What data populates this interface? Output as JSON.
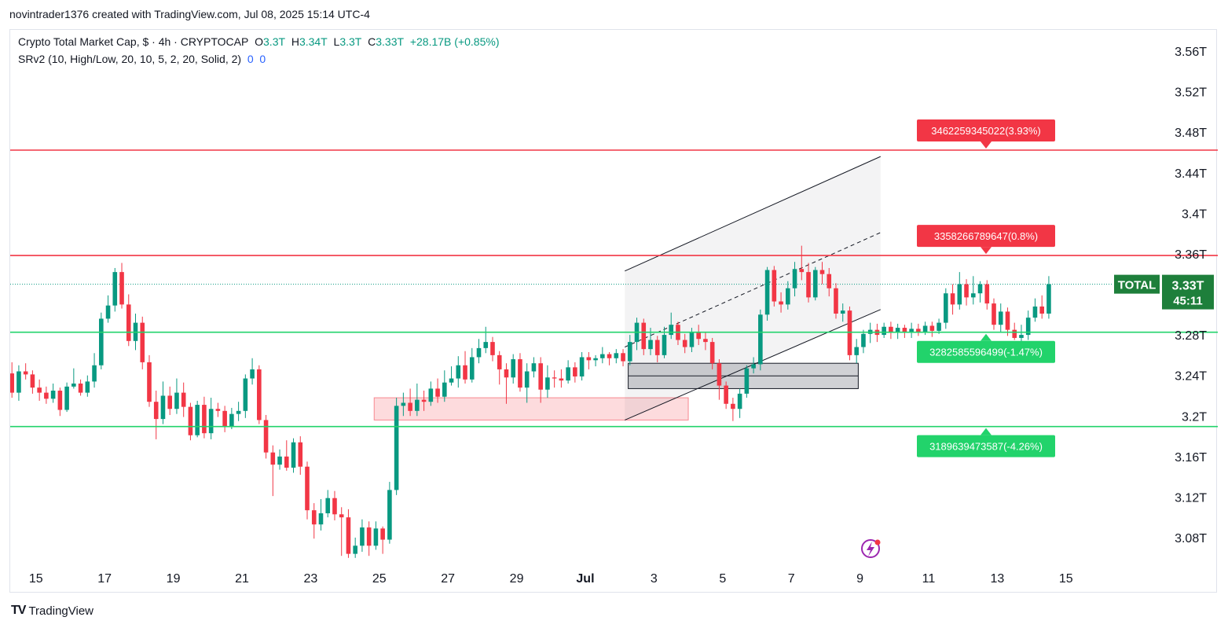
{
  "header": {
    "attribution": "novintrader1376 created with TradingView.com, Jul 08, 2025 15:14 UTC-4"
  },
  "legend": {
    "symbol": "Crypto Total Market Cap, $ · 4h · CRYPTOCAP",
    "open_label": "O",
    "open_value": "3.3T",
    "high_label": "H",
    "high_value": "3.34T",
    "low_label": "L",
    "low_value": "3.3T",
    "close_label": "C",
    "close_value": "3.33T",
    "change": "+28.17B (+0.85%)",
    "indicator": "SRv2 (10, High/Low, 20, 10, 5, 2, 20, Solid, 2)",
    "indicator_val1": "0",
    "indicator_val2": "0"
  },
  "price_badge": {
    "symbol": "TOTAL",
    "price": "3.33T",
    "countdown": "45:11"
  },
  "footer": {
    "brand": "TradingView"
  },
  "colors": {
    "up": "#089981",
    "down": "#f23645",
    "resistance": "#f23645",
    "support": "#22d36b",
    "badge": "#1e7f3b",
    "channel": "#131722"
  },
  "chart_data": {
    "type": "candlestick",
    "y_axis_labels": [
      "3.56T",
      "3.52T",
      "3.48T",
      "3.44T",
      "3.4T",
      "3.36T",
      "3.32T",
      "3.28T",
      "3.24T",
      "3.2T",
      "3.16T",
      "3.12T",
      "3.08T"
    ],
    "y_axis_values": [
      3.56,
      3.52,
      3.48,
      3.44,
      3.4,
      3.36,
      3.32,
      3.28,
      3.24,
      3.2,
      3.16,
      3.12,
      3.08
    ],
    "x_axis_labels": [
      "15",
      "17",
      "19",
      "21",
      "23",
      "25",
      "27",
      "29",
      "Jul",
      "3",
      "5",
      "7",
      "9",
      "11",
      "13",
      "15"
    ],
    "x_axis_days": [
      15,
      17,
      19,
      21,
      23,
      25,
      27,
      29,
      31,
      33,
      35,
      37,
      39,
      41,
      43,
      45
    ],
    "x_unit": "day index (Jun 1 = 1; Jul 1 = 31)",
    "ylim": [
      3.058,
      3.574
    ],
    "xlim": [
      14.25,
      46.6
    ],
    "grid": false,
    "levels": [
      {
        "label": "3462259345022(3.93%)",
        "value": 3.4623,
        "kind": "resistance"
      },
      {
        "label": "3358266789647(0.8%)",
        "value": 3.3583,
        "kind": "resistance"
      },
      {
        "label": "3282585596499(-1.47%)",
        "value": 3.2826,
        "kind": "support"
      },
      {
        "label": "3189639473587(-4.26%)",
        "value": 3.1896,
        "kind": "support"
      }
    ],
    "last_price": 3.33,
    "zones": [
      {
        "kind": "demand",
        "x0": 24.85,
        "x1": 34.0,
        "y0": 3.196,
        "y1": 3.218
      },
      {
        "kind": "gray",
        "x0": 32.25,
        "x1": 38.95,
        "y0": 3.227,
        "y1": 3.252
      }
    ],
    "channel": {
      "lower": [
        [
          32.15,
          3.196
        ],
        [
          39.6,
          3.305
        ]
      ],
      "upper": [
        [
          32.15,
          3.343
        ],
        [
          39.6,
          3.456
        ]
      ],
      "mid": [
        [
          32.15,
          3.268
        ],
        [
          39.6,
          3.381
        ]
      ],
      "fill_until": 39.6
    },
    "candles": [
      [
        14.3,
        3.242,
        3.223,
        3.253,
        3.218
      ],
      [
        14.5,
        3.223,
        3.244,
        3.25,
        3.215
      ],
      [
        14.7,
        3.244,
        3.241,
        3.252,
        3.236
      ],
      [
        14.9,
        3.241,
        3.228,
        3.245,
        3.222
      ],
      [
        15.1,
        3.228,
        3.223,
        3.236,
        3.215
      ],
      [
        15.3,
        3.223,
        3.217,
        3.229,
        3.212
      ],
      [
        15.5,
        3.217,
        3.225,
        3.232,
        3.213
      ],
      [
        15.7,
        3.225,
        3.206,
        3.228,
        3.2
      ],
      [
        15.9,
        3.206,
        3.229,
        3.233,
        3.204
      ],
      [
        16.1,
        3.229,
        3.232,
        3.247,
        3.227
      ],
      [
        16.3,
        3.232,
        3.223,
        3.236,
        3.22
      ],
      [
        16.5,
        3.223,
        3.234,
        3.24,
        3.219
      ],
      [
        16.7,
        3.234,
        3.25,
        3.262,
        3.228
      ],
      [
        16.9,
        3.25,
        3.296,
        3.302,
        3.246
      ],
      [
        17.1,
        3.296,
        3.309,
        3.319,
        3.292
      ],
      [
        17.3,
        3.309,
        3.342,
        3.346,
        3.303
      ],
      [
        17.5,
        3.342,
        3.31,
        3.351,
        3.306
      ],
      [
        17.7,
        3.31,
        3.274,
        3.32,
        3.269
      ],
      [
        17.9,
        3.274,
        3.292,
        3.301,
        3.265
      ],
      [
        18.1,
        3.292,
        3.253,
        3.298,
        3.246
      ],
      [
        18.3,
        3.253,
        3.214,
        3.26,
        3.209
      ],
      [
        18.5,
        3.214,
        3.197,
        3.225,
        3.177
      ],
      [
        18.7,
        3.197,
        3.22,
        3.234,
        3.192
      ],
      [
        18.9,
        3.22,
        3.207,
        3.229,
        3.201
      ],
      [
        19.1,
        3.207,
        3.223,
        3.237,
        3.202
      ],
      [
        19.3,
        3.223,
        3.209,
        3.233,
        3.199
      ],
      [
        19.5,
        3.209,
        3.181,
        3.213,
        3.176
      ],
      [
        19.7,
        3.181,
        3.211,
        3.215,
        3.179
      ],
      [
        19.9,
        3.211,
        3.183,
        3.219,
        3.178
      ],
      [
        20.1,
        3.183,
        3.207,
        3.218,
        3.177
      ],
      [
        20.3,
        3.207,
        3.205,
        3.213,
        3.199
      ],
      [
        20.5,
        3.205,
        3.19,
        3.21,
        3.184
      ],
      [
        20.7,
        3.19,
        3.202,
        3.208,
        3.187
      ],
      [
        20.9,
        3.202,
        3.205,
        3.214,
        3.195
      ],
      [
        21.1,
        3.205,
        3.237,
        3.241,
        3.198
      ],
      [
        21.3,
        3.237,
        3.246,
        3.257,
        3.231
      ],
      [
        21.5,
        3.246,
        3.196,
        3.25,
        3.192
      ],
      [
        21.7,
        3.196,
        3.164,
        3.201,
        3.158
      ],
      [
        21.9,
        3.164,
        3.152,
        3.171,
        3.121
      ],
      [
        22.1,
        3.152,
        3.16,
        3.167,
        3.147
      ],
      [
        22.3,
        3.16,
        3.149,
        3.176,
        3.146
      ],
      [
        22.5,
        3.149,
        3.174,
        3.178,
        3.144
      ],
      [
        22.7,
        3.174,
        3.15,
        3.18,
        3.142
      ],
      [
        22.9,
        3.15,
        3.107,
        3.155,
        3.098
      ],
      [
        23.1,
        3.107,
        3.093,
        3.114,
        3.079
      ],
      [
        23.3,
        3.093,
        3.104,
        3.118,
        3.087
      ],
      [
        23.5,
        3.104,
        3.119,
        3.127,
        3.1
      ],
      [
        23.7,
        3.119,
        3.103,
        3.126,
        3.097
      ],
      [
        23.9,
        3.103,
        3.1,
        3.11,
        3.062
      ],
      [
        24.1,
        3.1,
        3.064,
        3.108,
        3.06
      ],
      [
        24.3,
        3.064,
        3.072,
        3.08,
        3.06
      ],
      [
        24.5,
        3.072,
        3.09,
        3.098,
        3.066
      ],
      [
        24.7,
        3.09,
        3.072,
        3.096,
        3.062
      ],
      [
        24.9,
        3.072,
        3.089,
        3.096,
        3.068
      ],
      [
        25.1,
        3.089,
        3.078,
        3.091,
        3.064
      ],
      [
        25.3,
        3.078,
        3.127,
        3.135,
        3.074
      ],
      [
        25.5,
        3.127,
        3.21,
        3.218,
        3.122
      ],
      [
        25.7,
        3.21,
        3.213,
        3.223,
        3.2
      ],
      [
        25.9,
        3.213,
        3.205,
        3.227,
        3.2
      ],
      [
        26.1,
        3.205,
        3.216,
        3.232,
        3.2
      ],
      [
        26.3,
        3.216,
        3.214,
        3.225,
        3.205
      ],
      [
        26.5,
        3.214,
        3.227,
        3.234,
        3.21
      ],
      [
        26.7,
        3.227,
        3.219,
        3.237,
        3.213
      ],
      [
        26.9,
        3.219,
        3.233,
        3.245,
        3.214
      ],
      [
        27.1,
        3.233,
        3.237,
        3.249,
        3.23
      ],
      [
        27.3,
        3.237,
        3.25,
        3.259,
        3.228
      ],
      [
        27.5,
        3.25,
        3.236,
        3.264,
        3.232
      ],
      [
        27.7,
        3.236,
        3.258,
        3.267,
        3.233
      ],
      [
        27.9,
        3.258,
        3.267,
        3.276,
        3.252
      ],
      [
        28.1,
        3.267,
        3.273,
        3.288,
        3.262
      ],
      [
        28.3,
        3.273,
        3.26,
        3.278,
        3.254
      ],
      [
        28.5,
        3.26,
        3.246,
        3.264,
        3.231
      ],
      [
        28.7,
        3.246,
        3.238,
        3.252,
        3.212
      ],
      [
        28.9,
        3.238,
        3.256,
        3.261,
        3.232
      ],
      [
        29.1,
        3.256,
        3.228,
        3.262,
        3.224
      ],
      [
        29.3,
        3.228,
        3.244,
        3.252,
        3.213
      ],
      [
        29.5,
        3.244,
        3.252,
        3.258,
        3.238
      ],
      [
        29.7,
        3.252,
        3.226,
        3.258,
        3.213
      ],
      [
        29.9,
        3.226,
        3.238,
        3.25,
        3.218
      ],
      [
        30.1,
        3.238,
        3.237,
        3.245,
        3.228
      ],
      [
        30.3,
        3.237,
        3.235,
        3.246,
        3.228
      ],
      [
        30.5,
        3.235,
        3.248,
        3.255,
        3.232
      ],
      [
        30.7,
        3.248,
        3.239,
        3.253,
        3.233
      ],
      [
        30.9,
        3.239,
        3.258,
        3.263,
        3.235
      ],
      [
        31.1,
        3.258,
        3.255,
        3.263,
        3.246
      ],
      [
        31.3,
        3.255,
        3.257,
        3.26,
        3.249
      ],
      [
        31.5,
        3.257,
        3.261,
        3.268,
        3.252
      ],
      [
        31.7,
        3.261,
        3.257,
        3.263,
        3.25
      ],
      [
        31.9,
        3.257,
        3.262,
        3.266,
        3.252
      ],
      [
        32.1,
        3.262,
        3.254,
        3.266,
        3.249
      ],
      [
        32.3,
        3.254,
        3.273,
        3.28,
        3.25
      ],
      [
        32.5,
        3.273,
        3.292,
        3.297,
        3.265
      ],
      [
        32.7,
        3.292,
        3.266,
        3.296,
        3.26
      ],
      [
        32.9,
        3.266,
        3.275,
        3.287,
        3.26
      ],
      [
        33.1,
        3.275,
        3.26,
        3.279,
        3.253
      ],
      [
        33.3,
        3.26,
        3.28,
        3.288,
        3.257
      ],
      [
        33.5,
        3.28,
        3.29,
        3.302,
        3.276
      ],
      [
        33.7,
        3.29,
        3.275,
        3.293,
        3.27
      ],
      [
        33.9,
        3.275,
        3.268,
        3.281,
        3.262
      ],
      [
        34.1,
        3.268,
        3.282,
        3.287,
        3.263
      ],
      [
        34.3,
        3.282,
        3.276,
        3.29,
        3.27
      ],
      [
        34.5,
        3.276,
        3.273,
        3.282,
        3.265
      ],
      [
        34.7,
        3.273,
        3.252,
        3.277,
        3.246
      ],
      [
        34.9,
        3.252,
        3.23,
        3.256,
        3.216
      ],
      [
        35.1,
        3.23,
        3.212,
        3.234,
        3.207
      ],
      [
        35.3,
        3.212,
        3.207,
        3.218,
        3.195
      ],
      [
        35.5,
        3.207,
        3.222,
        3.227,
        3.198
      ],
      [
        35.7,
        3.222,
        3.247,
        3.25,
        3.218
      ],
      [
        35.9,
        3.247,
        3.251,
        3.258,
        3.242
      ],
      [
        36.1,
        3.251,
        3.3,
        3.305,
        3.245
      ],
      [
        36.3,
        3.3,
        3.344,
        3.347,
        3.294
      ],
      [
        36.5,
        3.344,
        3.313,
        3.348,
        3.308
      ],
      [
        36.7,
        3.313,
        3.31,
        3.322,
        3.302
      ],
      [
        36.9,
        3.31,
        3.326,
        3.333,
        3.305
      ],
      [
        37.1,
        3.326,
        3.345,
        3.352,
        3.318
      ],
      [
        37.3,
        3.345,
        3.342,
        3.368,
        3.334
      ],
      [
        37.5,
        3.342,
        3.317,
        3.351,
        3.312
      ],
      [
        37.7,
        3.317,
        3.344,
        3.347,
        3.314
      ],
      [
        37.9,
        3.344,
        3.34,
        3.352,
        3.33
      ],
      [
        38.1,
        3.34,
        3.326,
        3.346,
        3.318
      ],
      [
        38.3,
        3.326,
        3.301,
        3.331,
        3.296
      ],
      [
        38.5,
        3.301,
        3.304,
        3.311,
        3.293
      ],
      [
        38.7,
        3.304,
        3.26,
        3.308,
        3.255
      ],
      [
        38.9,
        3.26,
        3.268,
        3.276,
        3.252
      ],
      [
        39.1,
        3.268,
        3.281,
        3.285,
        3.262
      ],
      [
        39.3,
        3.281,
        3.285,
        3.292,
        3.272
      ],
      [
        39.5,
        3.285,
        3.28,
        3.291,
        3.273
      ],
      [
        39.7,
        3.28,
        3.288,
        3.292,
        3.277
      ],
      [
        39.9,
        3.288,
        3.282,
        3.293,
        3.276
      ],
      [
        40.1,
        3.282,
        3.287,
        3.291,
        3.276
      ],
      [
        40.3,
        3.287,
        3.283,
        3.29,
        3.277
      ],
      [
        40.5,
        3.283,
        3.286,
        3.292,
        3.277
      ],
      [
        40.7,
        3.286,
        3.283,
        3.291,
        3.279
      ],
      [
        40.9,
        3.283,
        3.289,
        3.293,
        3.28
      ],
      [
        41.1,
        3.289,
        3.284,
        3.293,
        3.278
      ],
      [
        41.3,
        3.284,
        3.292,
        3.296,
        3.281
      ],
      [
        41.5,
        3.292,
        3.321,
        3.326,
        3.286
      ],
      [
        41.7,
        3.321,
        3.31,
        3.33,
        3.3
      ],
      [
        41.9,
        3.31,
        3.33,
        3.342,
        3.305
      ],
      [
        42.1,
        3.33,
        3.317,
        3.335,
        3.309
      ],
      [
        42.3,
        3.317,
        3.321,
        3.338,
        3.31
      ],
      [
        42.5,
        3.321,
        3.33,
        3.333,
        3.312
      ],
      [
        42.7,
        3.33,
        3.311,
        3.334,
        3.305
      ],
      [
        42.9,
        3.311,
        3.29,
        3.316,
        3.285
      ],
      [
        43.1,
        3.29,
        3.303,
        3.311,
        3.283
      ],
      [
        43.3,
        3.303,
        3.285,
        3.307,
        3.279
      ],
      [
        43.5,
        3.285,
        3.277,
        3.292,
        3.275
      ],
      [
        43.7,
        3.277,
        3.28,
        3.29,
        3.272
      ],
      [
        43.9,
        3.28,
        3.297,
        3.304,
        3.275
      ],
      [
        44.1,
        3.297,
        3.308,
        3.316,
        3.293
      ],
      [
        44.3,
        3.308,
        3.301,
        3.319,
        3.296
      ],
      [
        44.5,
        3.301,
        3.33,
        3.338,
        3.296
      ]
    ]
  }
}
